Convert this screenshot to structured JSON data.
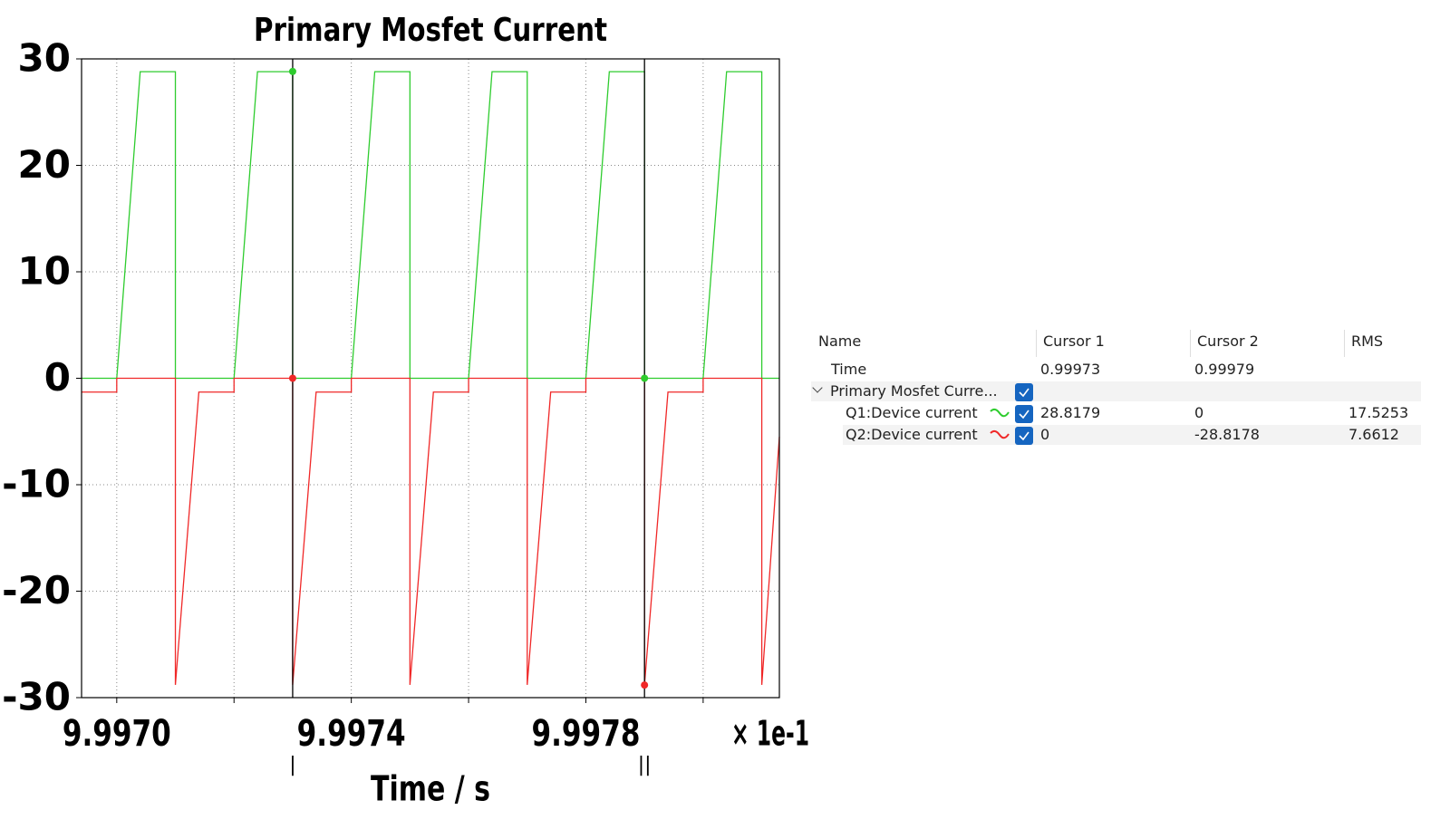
{
  "chart_data": {
    "type": "line",
    "title": "Primary Mosfet Current",
    "x_label": "Time / s",
    "x_multiplier": "× 1e-1",
    "xlim": [
      9.99694,
      9.99813
    ],
    "ylim": [
      -30,
      30
    ],
    "xticks": [
      {
        "value": 9.997,
        "label": "9.9970"
      },
      {
        "value": 9.9974,
        "label": "9.9974"
      },
      {
        "value": 9.9978,
        "label": "9.9978"
      }
    ],
    "xminor_ticks": [
      9.9972,
      9.9976,
      9.998
    ],
    "yticks": [
      -30,
      -20,
      -10,
      0,
      10,
      20,
      30
    ],
    "grid": true,
    "cursors": [
      {
        "label": "|",
        "x": 9.9973
      },
      {
        "label": "||",
        "x": 9.9979
      }
    ],
    "series": [
      {
        "name": "Q1:Device current",
        "color": "#2ecc2e",
        "x": [
          9.99694,
          9.997,
          9.99704,
          9.9971,
          9.9971,
          9.9972,
          9.99724,
          9.9973,
          9.9973,
          9.9974,
          9.99744,
          9.9975,
          9.9975,
          9.9976,
          9.99764,
          9.9977,
          9.9977,
          9.9978,
          9.99784,
          9.9979,
          9.9979,
          9.998,
          9.99804,
          9.9981,
          9.9981,
          9.99813
        ],
        "values": [
          0,
          0,
          28.8,
          28.8,
          0,
          0,
          28.8,
          28.8,
          0,
          0,
          28.8,
          28.8,
          0,
          0,
          28.8,
          28.8,
          0,
          0,
          28.8,
          28.8,
          0,
          0,
          28.8,
          28.8,
          0,
          0
        ]
      },
      {
        "name": "Q2:Device current",
        "color": "#f02828",
        "x": [
          9.99694,
          9.997,
          9.997,
          9.9971,
          9.9971,
          9.99714,
          9.9972,
          9.9972,
          9.9973,
          9.9973,
          9.99734,
          9.9974,
          9.9974,
          9.9975,
          9.9975,
          9.99754,
          9.9976,
          9.9976,
          9.9977,
          9.9977,
          9.99774,
          9.9978,
          9.9978,
          9.9979,
          9.9979,
          9.99794,
          9.998,
          9.998,
          9.9981,
          9.9981,
          9.99813
        ],
        "values": [
          -1.3,
          -1.3,
          0,
          0,
          -28.8,
          -1.3,
          -1.3,
          0,
          0,
          -28.8,
          -1.3,
          -1.3,
          0,
          0,
          -28.8,
          -1.3,
          -1.3,
          0,
          0,
          -28.8,
          -1.3,
          -1.3,
          0,
          0,
          -28.8,
          -1.3,
          -1.3,
          0,
          0,
          -28.8,
          -5.5
        ]
      }
    ]
  },
  "table": {
    "columns": [
      "Name",
      "Cursor 1",
      "Cursor 2",
      "RMS"
    ],
    "rows": [
      {
        "name": "Time",
        "cursor1": 0.99973,
        "cursor2": 0.99979
      },
      {
        "name": "Primary Mosfet Curre..."
      },
      {
        "name": "Q1:Device current",
        "cursor1": 28.8179,
        "cursor2": 0,
        "rms": 17.5253
      },
      {
        "name": "Q2:Device current",
        "cursor1": 0,
        "cursor2": -28.8178,
        "rms": 7.6612
      }
    ]
  }
}
